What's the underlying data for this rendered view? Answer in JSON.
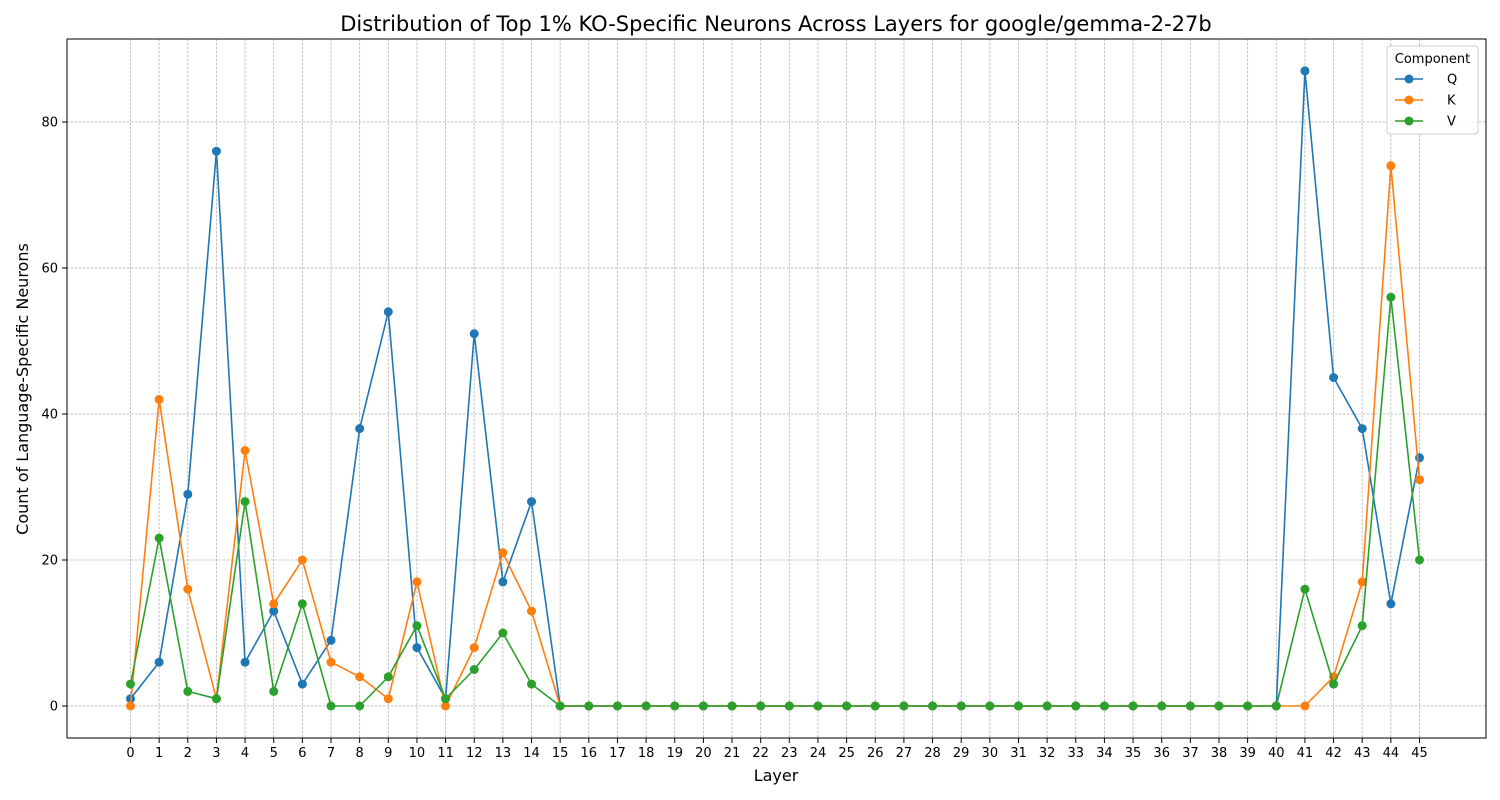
{
  "chart_data": {
    "type": "line",
    "title": "Distribution of Top 1% KO-Specific Neurons Across Layers for google/gemma-2-27b",
    "xlabel": "Layer",
    "ylabel": "Count of Language-Specific Neurons",
    "x": [
      0,
      1,
      2,
      3,
      4,
      5,
      6,
      7,
      8,
      9,
      10,
      11,
      12,
      13,
      14,
      15,
      16,
      17,
      18,
      19,
      20,
      21,
      22,
      23,
      24,
      25,
      26,
      27,
      28,
      29,
      30,
      31,
      32,
      33,
      34,
      35,
      36,
      37,
      38,
      39,
      40,
      41,
      42,
      43,
      44,
      45
    ],
    "y_ticks": [
      0,
      20,
      40,
      60,
      80
    ],
    "grid": true,
    "legend": {
      "title": "Component",
      "placement": "top-right"
    },
    "series": [
      {
        "name": "Q",
        "color": "#1f77b4",
        "values": [
          1,
          6,
          29,
          76,
          6,
          13,
          3,
          9,
          38,
          54,
          8,
          1,
          51,
          17,
          28,
          0,
          0,
          0,
          0,
          0,
          0,
          0,
          0,
          0,
          0,
          0,
          0,
          0,
          0,
          0,
          0,
          0,
          0,
          0,
          0,
          0,
          0,
          0,
          0,
          0,
          0,
          87,
          45,
          38,
          14,
          34
        ]
      },
      {
        "name": "K",
        "color": "#ff7f0e",
        "values": [
          0,
          42,
          16,
          1,
          35,
          14,
          20,
          6,
          4,
          1,
          17,
          0,
          8,
          21,
          13,
          0,
          0,
          0,
          0,
          0,
          0,
          0,
          0,
          0,
          0,
          0,
          0,
          0,
          0,
          0,
          0,
          0,
          0,
          0,
          0,
          0,
          0,
          0,
          0,
          0,
          0,
          0,
          4,
          17,
          74,
          31
        ]
      },
      {
        "name": "V",
        "color": "#2ca02c",
        "values": [
          3,
          23,
          2,
          1,
          28,
          2,
          14,
          0,
          0,
          4,
          11,
          1,
          5,
          10,
          3,
          0,
          0,
          0,
          0,
          0,
          0,
          0,
          0,
          0,
          0,
          0,
          0,
          0,
          0,
          0,
          0,
          0,
          0,
          0,
          0,
          0,
          0,
          0,
          0,
          0,
          0,
          16,
          3,
          11,
          56,
          20
        ]
      }
    ]
  }
}
